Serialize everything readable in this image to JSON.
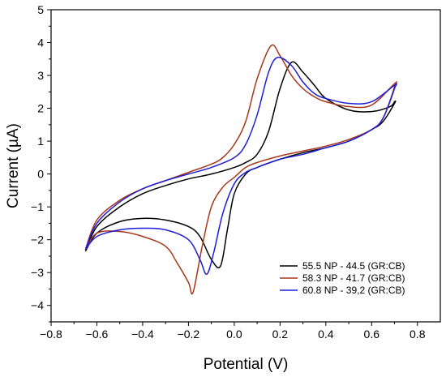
{
  "chart_data": {
    "type": "line",
    "title": "",
    "xlabel": "Potential (V)",
    "ylabel": "Current (µA)",
    "xlim": [
      -0.8,
      0.9
    ],
    "ylim": [
      -4.5,
      5
    ],
    "xticks": [
      -0.8,
      -0.6,
      -0.4,
      -0.2,
      0.0,
      0.2,
      0.4,
      0.6,
      0.8
    ],
    "xtick_labels": [
      "−0.8",
      "−0.6",
      "−0.4",
      "−0.2",
      "0.0",
      "0.2",
      "0.4",
      "0.6",
      "0.8"
    ],
    "yticks": [
      -4,
      -3,
      -2,
      -1,
      0,
      1,
      2,
      3,
      4,
      5
    ],
    "ytick_labels": [
      "−4",
      "−3",
      "−2",
      "−1",
      "0",
      "1",
      "2",
      "3",
      "4",
      "5"
    ],
    "grid": false,
    "legend_position": "bottom-right",
    "series": [
      {
        "name": "55.5 NP - 44.5 (GR:CB)",
        "color": "#000000",
        "x": [
          -0.65,
          -0.6,
          -0.5,
          -0.4,
          -0.3,
          -0.2,
          -0.1,
          0.0,
          0.05,
          0.1,
          0.15,
          0.2,
          0.25,
          0.3,
          0.35,
          0.4,
          0.5,
          0.6,
          0.68,
          0.7,
          0.7,
          0.65,
          0.6,
          0.5,
          0.4,
          0.3,
          0.2,
          0.1,
          0.05,
          0.0,
          -0.03,
          -0.06,
          -0.1,
          -0.15,
          -0.2,
          -0.3,
          -0.4,
          -0.5,
          -0.6,
          -0.65
        ],
        "y": [
          -2.35,
          -1.6,
          -1.0,
          -0.6,
          -0.35,
          -0.15,
          0.0,
          0.2,
          0.35,
          0.6,
          1.3,
          2.6,
          3.4,
          3.1,
          2.7,
          2.3,
          1.95,
          1.9,
          2.05,
          2.2,
          2.15,
          1.6,
          1.35,
          1.0,
          0.8,
          0.65,
          0.45,
          0.2,
          0.0,
          -0.6,
          -1.7,
          -2.8,
          -2.6,
          -1.9,
          -1.6,
          -1.4,
          -1.35,
          -1.45,
          -1.8,
          -2.35
        ]
      },
      {
        "name": "58.3 NP - 41.7 (GR:CB)",
        "color": "#a8371c",
        "x": [
          -0.65,
          -0.6,
          -0.5,
          -0.4,
          -0.3,
          -0.2,
          -0.1,
          -0.05,
          0.0,
          0.05,
          0.1,
          0.16,
          0.2,
          0.25,
          0.3,
          0.35,
          0.4,
          0.5,
          0.6,
          0.7,
          0.7,
          0.65,
          0.6,
          0.5,
          0.4,
          0.3,
          0.2,
          0.1,
          0.05,
          0.0,
          -0.05,
          -0.1,
          -0.14,
          -0.18,
          -0.2,
          -0.25,
          -0.3,
          -0.4,
          -0.5,
          -0.6,
          -0.65
        ],
        "y": [
          -2.3,
          -1.4,
          -0.8,
          -0.45,
          -0.2,
          0.05,
          0.3,
          0.5,
          0.9,
          1.6,
          2.9,
          3.9,
          3.6,
          3.0,
          2.6,
          2.35,
          2.2,
          2.05,
          2.1,
          2.75,
          2.65,
          1.7,
          1.35,
          1.05,
          0.85,
          0.7,
          0.55,
          0.35,
          0.2,
          -0.1,
          -0.4,
          -1.0,
          -2.2,
          -3.6,
          -3.3,
          -2.7,
          -2.2,
          -1.9,
          -1.75,
          -1.8,
          -2.3
        ]
      },
      {
        "name": "60.8 NP - 39,2 (GR:CB)",
        "color": "#1f1fd9",
        "x": [
          -0.65,
          -0.6,
          -0.5,
          -0.4,
          -0.3,
          -0.2,
          -0.1,
          0.0,
          0.05,
          0.1,
          0.15,
          0.19,
          0.25,
          0.3,
          0.35,
          0.4,
          0.5,
          0.6,
          0.7,
          0.7,
          0.65,
          0.6,
          0.5,
          0.4,
          0.3,
          0.2,
          0.1,
          0.05,
          0.0,
          -0.05,
          -0.09,
          -0.12,
          -0.15,
          -0.2,
          -0.3,
          -0.4,
          -0.5,
          -0.6,
          -0.65
        ],
        "y": [
          -2.3,
          -1.5,
          -0.85,
          -0.45,
          -0.2,
          0.0,
          0.2,
          0.5,
          0.9,
          1.8,
          3.1,
          3.55,
          3.3,
          2.8,
          2.45,
          2.3,
          2.15,
          2.2,
          2.7,
          2.6,
          1.7,
          1.35,
          1.0,
          0.8,
          0.6,
          0.45,
          0.2,
          0.05,
          -0.3,
          -1.2,
          -2.4,
          -3.05,
          -2.6,
          -2.0,
          -1.7,
          -1.65,
          -1.7,
          -1.9,
          -2.3
        ]
      }
    ]
  }
}
